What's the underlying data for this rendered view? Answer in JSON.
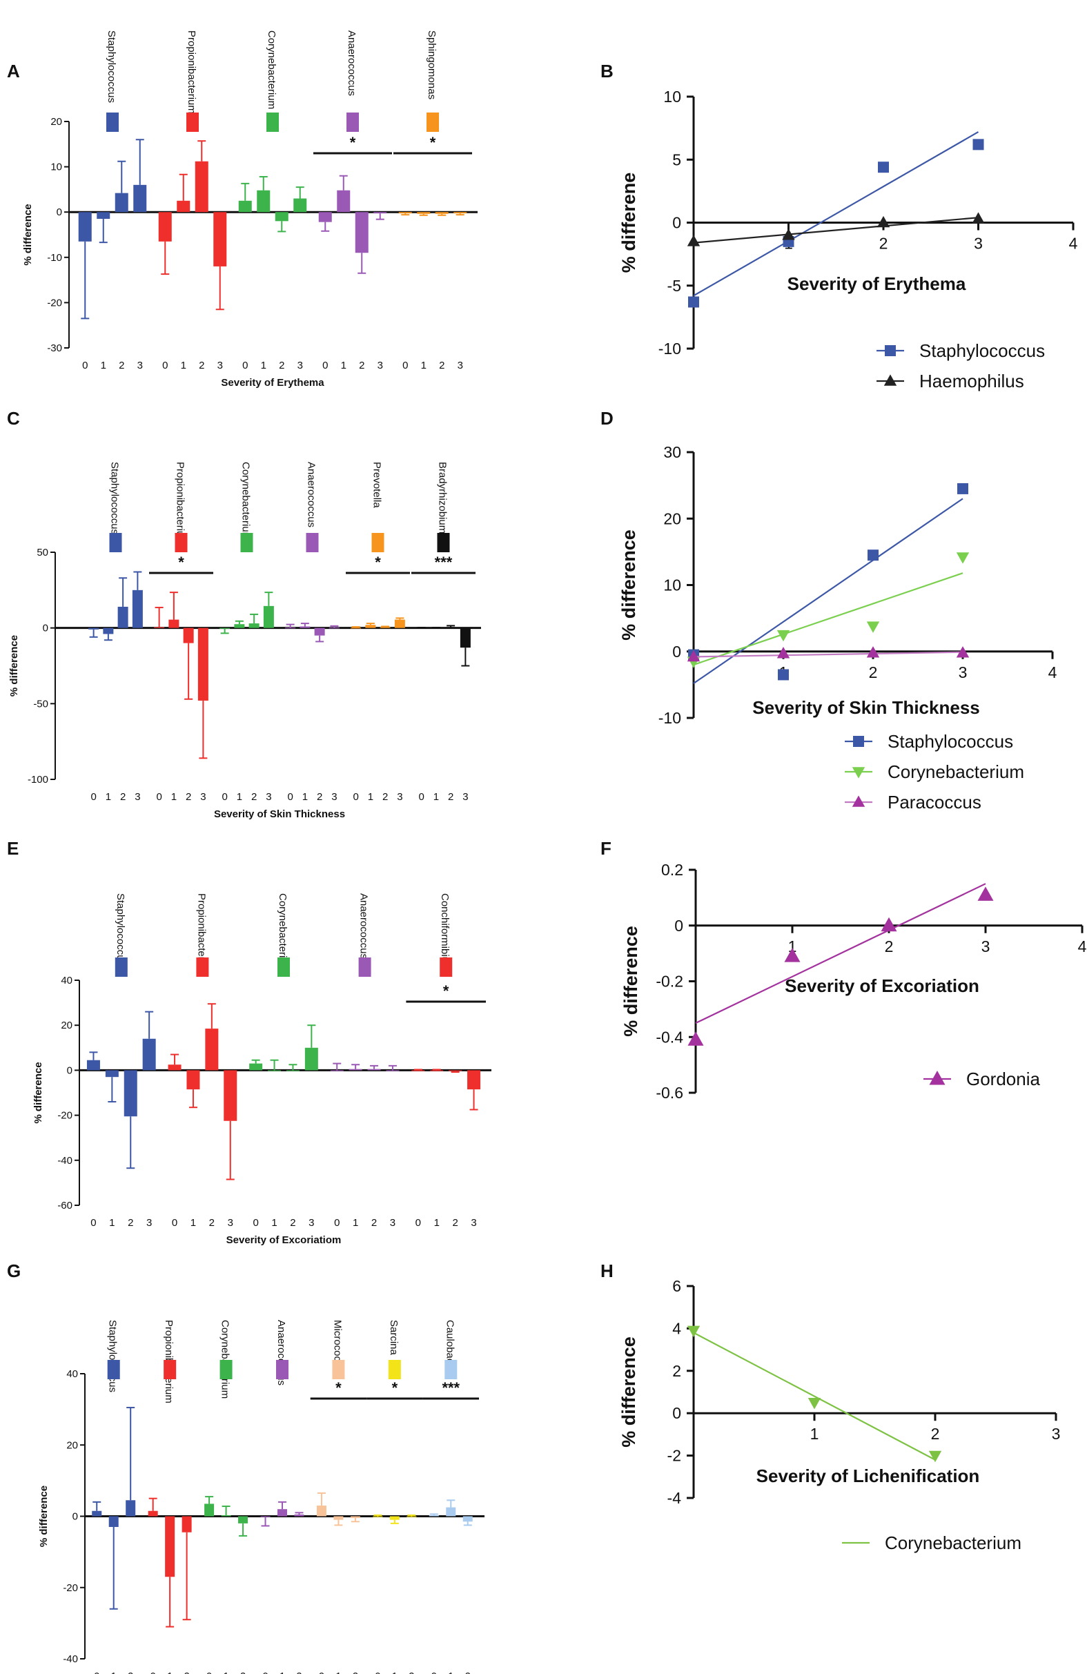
{
  "figure_title": "Skin bacterial genera percentage difference versus severity of atopic dermatitis signs",
  "colors": {
    "blue": "#3D57A7",
    "red": "#EE2F2C",
    "green": "#3CB44B",
    "purple": "#9B59B6",
    "orange": "#F7941D",
    "black": "#111111",
    "peach": "#F9C39A",
    "yellow": "#F2E418",
    "lightblue": "#A8CBEF",
    "lime": "#7AD04E",
    "linegreen": "#7DC243",
    "magenta": "#A3329E",
    "paraline": "#C27BC2",
    "trend_black": "#222222"
  },
  "chart_data": [
    {
      "panel": "A",
      "type": "bar",
      "ylabel": "% difference",
      "xlabel": "Severity of Erythema",
      "ylim": [
        -30,
        20
      ],
      "yticks": [
        -30,
        -20,
        -10,
        0,
        10,
        20
      ],
      "categories": [
        "0",
        "1",
        "2",
        "3"
      ],
      "groups": [
        {
          "name": "Staphylococcus",
          "color": "blue",
          "values": [
            -6.5,
            -1.5,
            4.2,
            6.0
          ],
          "errors": [
            17,
            5.2,
            7,
            10
          ]
        },
        {
          "name": "Propionibacterium",
          "color": "red",
          "values": [
            -6.5,
            2.5,
            11.2,
            -12.0
          ],
          "errors": [
            7.2,
            5.8,
            4.5,
            9.5
          ]
        },
        {
          "name": "Corynebacterium",
          "color": "green",
          "values": [
            2.5,
            4.8,
            -2.0,
            3.0
          ],
          "errors": [
            3.8,
            3.0,
            2.3,
            2.5
          ]
        },
        {
          "name": "Anaerococcus",
          "color": "purple",
          "values": [
            -2.2,
            4.8,
            -9.0,
            -0.3
          ],
          "errors": [
            2.0,
            3.2,
            4.5,
            1.3
          ]
        },
        {
          "name": "Sphingomonas",
          "color": "orange",
          "values": [
            -0.3,
            -0.4,
            -0.4,
            -0.3
          ],
          "errors": [
            0.3,
            0.3,
            0.3,
            0.3
          ]
        }
      ],
      "significance": [
        {
          "group": 3,
          "label": "*"
        },
        {
          "group": 4,
          "label": "*"
        }
      ]
    },
    {
      "panel": "B",
      "type": "scatter",
      "ylabel": "% differene",
      "xlabel": "Severity of Erythema",
      "xlim": [
        0,
        4
      ],
      "ylim": [
        -10,
        10
      ],
      "xticks": [
        1,
        2,
        3,
        4
      ],
      "yticks": [
        -10,
        -5,
        0,
        5,
        10
      ],
      "series": [
        {
          "name": "Staphylococcus",
          "color": "blue",
          "marker": "square",
          "x": [
            0,
            1,
            2,
            3
          ],
          "y": [
            -6.3,
            -1.5,
            4.4,
            6.2
          ],
          "fit": [
            [
              0,
              -5.8
            ],
            [
              3,
              7.2
            ]
          ]
        },
        {
          "name": "Haemophilus",
          "color": "trend_black",
          "marker": "triangle",
          "x": [
            0,
            1,
            2,
            3
          ],
          "y": [
            -1.5,
            -1.0,
            0.0,
            0.3
          ],
          "fit": [
            [
              0,
              -1.6
            ],
            [
              3,
              0.4
            ]
          ]
        }
      ]
    },
    {
      "panel": "C",
      "type": "bar",
      "ylabel": "% difference",
      "xlabel": "Severity of Skin Thickness",
      "ylim": [
        -100,
        50
      ],
      "yticks": [
        -100,
        -50,
        0,
        50
      ],
      "categories": [
        "0",
        "1",
        "2",
        "3"
      ],
      "groups": [
        {
          "name": "Staphylococcus",
          "color": "blue",
          "values": [
            -1.0,
            -4.0,
            14.0,
            25.0
          ],
          "errors": [
            5,
            4,
            19,
            12
          ]
        },
        {
          "name": "Propionibacterium",
          "color": "red",
          "values": [
            0.5,
            5.5,
            -10.0,
            -48.0
          ],
          "errors": [
            13,
            18,
            37,
            38
          ]
        },
        {
          "name": "Corynebacterium",
          "color": "green",
          "values": [
            -0.5,
            2.5,
            3.0,
            14.5
          ],
          "errors": [
            3,
            2,
            6,
            9
          ]
        },
        {
          "name": "Anaerococcus",
          "color": "purple",
          "values": [
            0.3,
            1.0,
            -5.0,
            0.3
          ],
          "errors": [
            2,
            2,
            4,
            1
          ]
        },
        {
          "name": "Prevotella",
          "color": "orange",
          "values": [
            0.2,
            2.0,
            0.5,
            5.5
          ],
          "errors": [
            0.5,
            1,
            0.5,
            1
          ]
        },
        {
          "name": "Bradyrhizobium",
          "color": "black",
          "values": [
            0.0,
            0.0,
            0.5,
            -13.0
          ],
          "errors": [
            0.3,
            0.3,
            1,
            12
          ]
        }
      ],
      "significance": [
        {
          "group": 1,
          "label": "*"
        },
        {
          "group": 4,
          "label": "*"
        },
        {
          "group": 5,
          "label": "***"
        }
      ]
    },
    {
      "panel": "D",
      "type": "scatter",
      "ylabel": "% difference",
      "xlabel": "Severity of Skin Thickness",
      "xlim": [
        0,
        4
      ],
      "ylim": [
        -10,
        30
      ],
      "xticks": [
        1,
        2,
        3,
        4
      ],
      "yticks": [
        -10,
        0,
        10,
        20,
        30
      ],
      "series": [
        {
          "name": "Staphylococcus",
          "color": "blue",
          "marker": "square",
          "x": [
            0,
            1,
            2,
            3
          ],
          "y": [
            -0.5,
            -3.5,
            14.5,
            24.5
          ],
          "fit": [
            [
              0,
              -4.8
            ],
            [
              3,
              23.0
            ]
          ]
        },
        {
          "name": "Corynebacterium",
          "color": "lime",
          "marker": "triangle-down",
          "x": [
            0,
            1,
            2,
            3
          ],
          "y": [
            -1.5,
            2.5,
            3.8,
            14.2
          ],
          "fit": [
            [
              0,
              -2.0
            ],
            [
              3,
              11.8
            ]
          ]
        },
        {
          "name": "Paracoccus",
          "color": "magenta",
          "marker": "triangle",
          "x": [
            0,
            1,
            2,
            3
          ],
          "y": [
            -0.8,
            -0.3,
            -0.2,
            -0.2
          ],
          "fit": [
            [
              0,
              -0.8
            ],
            [
              3,
              -0.1
            ]
          ]
        }
      ]
    },
    {
      "panel": "E",
      "type": "bar",
      "ylabel": "% difference",
      "xlabel": "Severity of Excoriatiom",
      "ylim": [
        -60,
        40
      ],
      "yticks": [
        -60,
        -40,
        -20,
        0,
        20,
        40
      ],
      "categories": [
        "0",
        "1",
        "2",
        "3"
      ],
      "groups": [
        {
          "name": "Staphylococcus",
          "color": "blue",
          "values": [
            4.5,
            -3.0,
            -20.5,
            14.0
          ],
          "errors": [
            3.5,
            11,
            23,
            12
          ]
        },
        {
          "name": "Propionibacterium",
          "color": "red",
          "values": [
            2.5,
            -8.5,
            18.5,
            -22.5
          ],
          "errors": [
            4.5,
            8,
            11,
            26
          ]
        },
        {
          "name": "Corynebacterium",
          "color": "green",
          "values": [
            3.0,
            0.0,
            0.0,
            10.0
          ],
          "errors": [
            1.5,
            4.5,
            2.5,
            10
          ]
        },
        {
          "name": "Anaerococcus",
          "color": "purple",
          "values": [
            0.0,
            0.5,
            0.5,
            0.0
          ],
          "errors": [
            3,
            2,
            1.5,
            2
          ]
        },
        {
          "name": "Conchiformibius",
          "color": "red",
          "values": [
            0.0,
            0.0,
            -0.3,
            -8.5
          ],
          "errors": [
            0.3,
            0.3,
            0.5,
            9
          ]
        }
      ],
      "significance": [
        {
          "group": 4,
          "label": "*"
        }
      ]
    },
    {
      "panel": "F",
      "type": "scatter",
      "ylabel": "% difference",
      "xlabel": "Severity of Excoriation",
      "xlim": [
        0,
        4
      ],
      "ylim": [
        -0.6,
        0.2
      ],
      "xticks": [
        1,
        2,
        3,
        4
      ],
      "yticks": [
        -0.6,
        -0.4,
        -0.2,
        0.0,
        0.2
      ],
      "series": [
        {
          "name": "Gordonia",
          "color": "magenta",
          "marker": "triangle",
          "x": [
            0,
            1,
            2,
            3
          ],
          "y": [
            -0.41,
            -0.11,
            0.0,
            0.11
          ],
          "fit": [
            [
              0,
              -0.35
            ],
            [
              3,
              0.15
            ]
          ]
        }
      ]
    },
    {
      "panel": "G",
      "type": "bar",
      "ylabel": "% difference",
      "xlabel": "Severity of Lichenification",
      "ylim": [
        -40,
        40
      ],
      "yticks": [
        -40,
        -20,
        0,
        20,
        40
      ],
      "categories": [
        "0",
        "1",
        "2"
      ],
      "groups": [
        {
          "name": "Staphylococcus",
          "color": "blue",
          "values": [
            1.5,
            -3.0,
            4.5
          ],
          "errors": [
            2.5,
            23,
            26
          ]
        },
        {
          "name": "Propionibacterium",
          "color": "red",
          "values": [
            1.5,
            -17.0,
            -4.5
          ],
          "errors": [
            3.5,
            14,
            24.5
          ]
        },
        {
          "name": "Corynebacterium",
          "color": "green",
          "values": [
            3.5,
            0.3,
            -2.0
          ],
          "errors": [
            2,
            2.5,
            3.5
          ]
        },
        {
          "name": "Anaerococcus",
          "color": "purple",
          "values": [
            -0.2,
            2.0,
            0.5
          ],
          "errors": [
            2.5,
            2,
            0.5
          ]
        },
        {
          "name": "Micrococcus",
          "color": "peach",
          "values": [
            3.0,
            -1.0,
            -0.5
          ],
          "errors": [
            3.5,
            1.5,
            1
          ]
        },
        {
          "name": "Sarcina",
          "color": "yellow",
          "values": [
            0.0,
            -1.0,
            0.0
          ],
          "errors": [
            0.3,
            1,
            0.3
          ]
        },
        {
          "name": "Caulobacter",
          "color": "lightblue",
          "values": [
            0.3,
            2.5,
            -1.5
          ],
          "errors": [
            0.3,
            2,
            1
          ]
        }
      ],
      "significance": [
        {
          "group": 4,
          "label": "*"
        },
        {
          "group": 5,
          "label": "*"
        },
        {
          "group": 6,
          "label": "***"
        }
      ]
    },
    {
      "panel": "H",
      "type": "scatter",
      "ylabel": "% difference",
      "xlabel": "Severity of Lichenification",
      "xlim": [
        0,
        3
      ],
      "ylim": [
        -4,
        6
      ],
      "xticks": [
        1,
        2,
        3
      ],
      "yticks": [
        -4,
        -2,
        0,
        2,
        4,
        6
      ],
      "series": [
        {
          "name": "Corynebacterium",
          "color": "linegreen",
          "marker": "triangle-down",
          "x": [
            0,
            1,
            2
          ],
          "y": [
            3.9,
            0.5,
            -2.0
          ],
          "fit": [
            [
              0,
              3.8
            ],
            [
              2,
              -2.2
            ]
          ],
          "legend_marker": false
        }
      ]
    }
  ]
}
